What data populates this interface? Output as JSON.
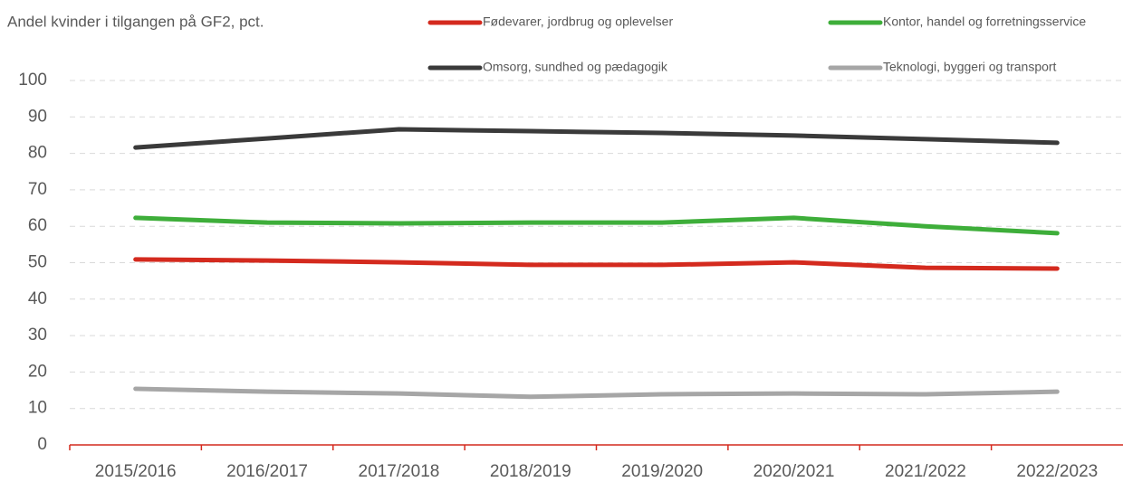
{
  "chart_data": {
    "type": "line",
    "title": "Andel kvinder i tilgangen på GF2, pct.",
    "categories": [
      "2015/2016",
      "2016/2017",
      "2017/2018",
      "2018/2019",
      "2019/2020",
      "2020/2021",
      "2021/2022",
      "2022/2023"
    ],
    "series": [
      {
        "name": "Fødevarer, jordbrug og oplevelser",
        "color": "#d42a1e",
        "values": [
          50.9,
          50.6,
          50.1,
          49.4,
          49.4,
          50.1,
          48.6,
          48.4
        ]
      },
      {
        "name": "Kontor, handel og forretningsservice",
        "color": "#3eae3a",
        "values": [
          62.3,
          61.0,
          60.8,
          61.0,
          61.0,
          62.3,
          60.0,
          58.1
        ]
      },
      {
        "name": "Omsorg, sundhed og pædagogik",
        "color": "#3a3a3a",
        "values": [
          81.6,
          84.1,
          86.6,
          86.1,
          85.6,
          84.9,
          83.9,
          82.9
        ]
      },
      {
        "name": "Teknologi, byggeri og transport",
        "color": "#a6a6a6",
        "values": [
          15.4,
          14.6,
          14.1,
          13.2,
          13.9,
          14.1,
          13.9,
          14.6
        ]
      }
    ],
    "ylim": [
      0,
      100
    ],
    "yticks": [
      0,
      10,
      20,
      30,
      40,
      50,
      60,
      70,
      80,
      90,
      100
    ],
    "grid": true
  }
}
